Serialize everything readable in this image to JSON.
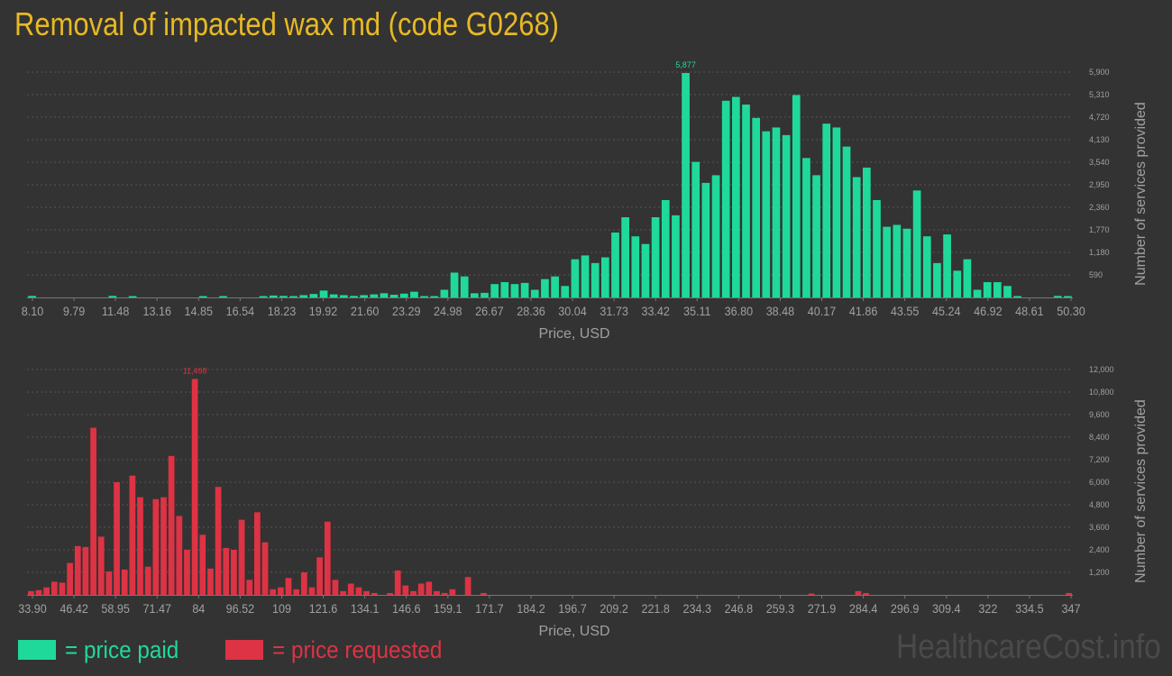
{
  "title": "Removal of impacted wax md (code G0268)",
  "colors": {
    "background": "#333333",
    "title": "#e8b923",
    "paid": "#1fd99b",
    "requested": "#dd3344",
    "axis_text": "#a0a0a0",
    "grid": "#555555"
  },
  "legend": {
    "paid_label": "= price paid",
    "requested_label": "= price requested"
  },
  "watermark": "HealthcareCost.info",
  "chart_data": [
    {
      "type": "bar",
      "name": "price paid",
      "xlabel": "Price, USD",
      "ylabel": "Number of services provided",
      "ylim": [
        0,
        5900
      ],
      "x_ticks": [
        "8.10",
        "9.79",
        "11.48",
        "13.16",
        "14.85",
        "16.54",
        "18.23",
        "19.92",
        "21.60",
        "23.29",
        "24.98",
        "26.67",
        "28.36",
        "30.04",
        "31.73",
        "33.42",
        "35.11",
        "36.80",
        "38.48",
        "40.17",
        "41.86",
        "43.55",
        "45.24",
        "46.92",
        "48.61",
        "50.30"
      ],
      "y_ticks": [
        590,
        1180,
        1770,
        2360,
        2950,
        3540,
        4130,
        4720,
        5310,
        5900
      ],
      "y_tick_labels": [
        "590",
        "1,180",
        "1,770",
        "2,360",
        "2,950",
        "3,540",
        "4,130",
        "4,720",
        "5,310",
        "5,900"
      ],
      "peak_label": "5,877",
      "values": [
        40,
        0,
        0,
        0,
        0,
        0,
        0,
        0,
        40,
        0,
        20,
        0,
        0,
        0,
        0,
        0,
        0,
        20,
        0,
        20,
        0,
        0,
        0,
        20,
        50,
        40,
        20,
        60,
        90,
        180,
        80,
        60,
        40,
        60,
        80,
        110,
        70,
        100,
        150,
        30,
        30,
        200,
        650,
        550,
        110,
        120,
        350,
        400,
        350,
        380,
        200,
        480,
        550,
        300,
        1000,
        1100,
        900,
        1050,
        1700,
        2100,
        1600,
        1400,
        2100,
        2550,
        2150,
        5877,
        3550,
        3000,
        3200,
        5150,
        5250,
        5050,
        4700,
        4350,
        4450,
        4250,
        5300,
        3650,
        3200,
        4550,
        4450,
        3950,
        3150,
        3400,
        2550,
        1850,
        1900,
        1800,
        2800,
        1600,
        900,
        1650,
        700,
        1000,
        200,
        400,
        400,
        300,
        20,
        0,
        0,
        0,
        40,
        20
      ]
    },
    {
      "type": "bar",
      "name": "price requested",
      "xlabel": "Price, USD",
      "ylabel": "Number of services provided",
      "ylim": [
        0,
        12000
      ],
      "x_ticks": [
        "33.90",
        "46.42",
        "58.95",
        "71.47",
        "84",
        "96.52",
        "109",
        "121.6",
        "134.1",
        "146.6",
        "159.1",
        "171.7",
        "184.2",
        "196.7",
        "209.2",
        "221.8",
        "234.3",
        "246.8",
        "259.3",
        "271.9",
        "284.4",
        "296.9",
        "309.4",
        "322",
        "334.5",
        "347"
      ],
      "y_ticks": [
        1200,
        2400,
        3600,
        4800,
        6000,
        7200,
        8400,
        9600,
        10800,
        12000
      ],
      "y_tick_labels": [
        "1,200",
        "2,400",
        "3,600",
        "4,800",
        "6,000",
        "7,200",
        "8,400",
        "9,600",
        "10,800",
        "12,000"
      ],
      "peak_label": "11,498",
      "values": [
        200,
        250,
        400,
        700,
        650,
        1700,
        2600,
        2550,
        8900,
        3100,
        1250,
        6000,
        1350,
        6350,
        5200,
        1500,
        5100,
        5200,
        7400,
        4200,
        2400,
        11498,
        3200,
        1400,
        5750,
        2500,
        2400,
        4000,
        800,
        4400,
        2800,
        300,
        400,
        900,
        300,
        1200,
        400,
        2000,
        3900,
        800,
        200,
        600,
        400,
        200,
        100,
        0,
        100,
        1300,
        500,
        200,
        600,
        700,
        200,
        100,
        300,
        0,
        950,
        0,
        100,
        0,
        0,
        0,
        0,
        0,
        0,
        0,
        0,
        0,
        0,
        0,
        0,
        0,
        0,
        0,
        0,
        0,
        0,
        0,
        0,
        0,
        0,
        0,
        0,
        0,
        0,
        0,
        0,
        0,
        0,
        0,
        0,
        0,
        0,
        0,
        0,
        0,
        0,
        0,
        0,
        0,
        50,
        0,
        0,
        0,
        0,
        0,
        200,
        100,
        0,
        0,
        0,
        0,
        0,
        0,
        0,
        0,
        0,
        0,
        0,
        0,
        0,
        0,
        0,
        0,
        0,
        0,
        0,
        0,
        0,
        0,
        0,
        0,
        0,
        100
      ]
    }
  ]
}
